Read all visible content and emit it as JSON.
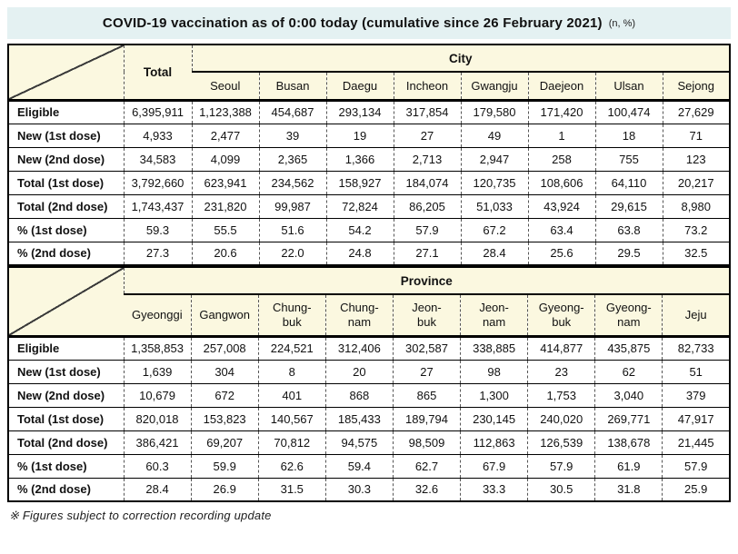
{
  "title": {
    "main": "COVID-19 vaccination as of 0:00 today (cumulative since 26 February 2021)",
    "suffix": "(n, %)"
  },
  "colors": {
    "title_bar_bg": "#e4f1f2",
    "table_header_bg": "#fbf8e0",
    "border": "#000000",
    "text": "#111111"
  },
  "city_table": {
    "group_header": "City",
    "total_header": "Total",
    "columns": [
      "Seoul",
      "Busan",
      "Daegu",
      "Incheon",
      "Gwangju",
      "Daejeon",
      "Ulsan",
      "Sejong"
    ],
    "rows": [
      {
        "label": "Eligible",
        "total": "6,395,911",
        "values": [
          "1,123,388",
          "454,687",
          "293,134",
          "317,854",
          "179,580",
          "171,420",
          "100,474",
          "27,629"
        ]
      },
      {
        "label": "New (1st dose)",
        "total": "4,933",
        "values": [
          "2,477",
          "39",
          "19",
          "27",
          "49",
          "1",
          "18",
          "71"
        ]
      },
      {
        "label": "New (2nd dose)",
        "total": "34,583",
        "values": [
          "4,099",
          "2,365",
          "1,366",
          "2,713",
          "2,947",
          "258",
          "755",
          "123"
        ]
      },
      {
        "label": "Total (1st dose)",
        "total": "3,792,660",
        "values": [
          "623,941",
          "234,562",
          "158,927",
          "184,074",
          "120,735",
          "108,606",
          "64,110",
          "20,217"
        ]
      },
      {
        "label": "Total (2nd dose)",
        "total": "1,743,437",
        "values": [
          "231,820",
          "99,987",
          "72,824",
          "86,205",
          "51,033",
          "43,924",
          "29,615",
          "8,980"
        ]
      },
      {
        "label": "% (1st dose)",
        "total": "59.3",
        "values": [
          "55.5",
          "51.6",
          "54.2",
          "57.9",
          "67.2",
          "63.4",
          "63.8",
          "73.2"
        ]
      },
      {
        "label": "% (2nd dose)",
        "total": "27.3",
        "values": [
          "20.6",
          "22.0",
          "24.8",
          "27.1",
          "28.4",
          "25.6",
          "29.5",
          "32.5"
        ]
      }
    ]
  },
  "province_table": {
    "group_header": "Province",
    "columns": [
      "Gyeonggi",
      "Gangwon",
      "Chung-buk",
      "Chung-nam",
      "Jeon-buk",
      "Jeon-nam",
      "Gyeong-buk",
      "Gyeong-nam",
      "Jeju"
    ],
    "rows": [
      {
        "label": "Eligible",
        "values": [
          "1,358,853",
          "257,008",
          "224,521",
          "312,406",
          "302,587",
          "338,885",
          "414,877",
          "435,875",
          "82,733"
        ]
      },
      {
        "label": "New (1st dose)",
        "values": [
          "1,639",
          "304",
          "8",
          "20",
          "27",
          "98",
          "23",
          "62",
          "51"
        ]
      },
      {
        "label": "New (2nd dose)",
        "values": [
          "10,679",
          "672",
          "401",
          "868",
          "865",
          "1,300",
          "1,753",
          "3,040",
          "379"
        ]
      },
      {
        "label": "Total (1st dose)",
        "values": [
          "820,018",
          "153,823",
          "140,567",
          "185,433",
          "189,794",
          "230,145",
          "240,020",
          "269,771",
          "47,917"
        ]
      },
      {
        "label": "Total (2nd dose)",
        "values": [
          "386,421",
          "69,207",
          "70,812",
          "94,575",
          "98,509",
          "112,863",
          "126,539",
          "138,678",
          "21,445"
        ]
      },
      {
        "label": "% (1st dose)",
        "values": [
          "60.3",
          "59.9",
          "62.6",
          "59.4",
          "62.7",
          "67.9",
          "57.9",
          "61.9",
          "57.9"
        ]
      },
      {
        "label": "% (2nd dose)",
        "values": [
          "28.4",
          "26.9",
          "31.5",
          "30.3",
          "32.6",
          "33.3",
          "30.5",
          "31.8",
          "25.9"
        ]
      }
    ]
  },
  "footnote": "※ Figures subject to correction recording update"
}
